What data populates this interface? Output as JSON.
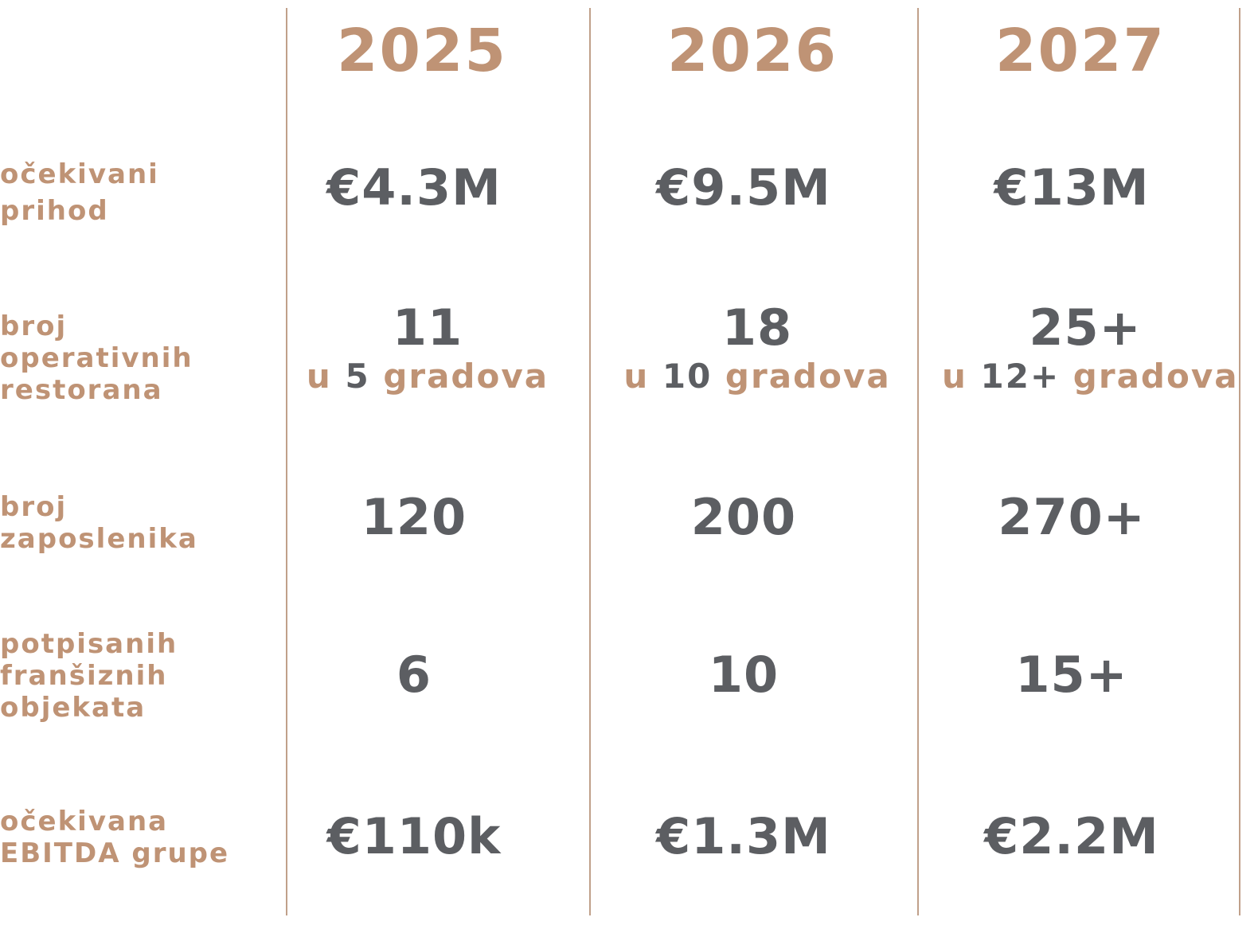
{
  "years": [
    "2025",
    "2026",
    "2027"
  ],
  "rows": [
    {
      "label_lines": [
        "očekivani",
        "prihod"
      ],
      "values": [
        "€4.3M",
        "€9.5M",
        "€13M"
      ]
    },
    {
      "label_lines": [
        "broj",
        "operativnih",
        "restorana"
      ],
      "values": [
        "11",
        "18",
        "25+"
      ],
      "sub": [
        {
          "pre": "u",
          "num": "5",
          "post": "gradova"
        },
        {
          "pre": "u",
          "num": "10",
          "post": "gradova"
        },
        {
          "pre": "u",
          "num": "12+",
          "post": "gradova"
        }
      ]
    },
    {
      "label_lines": [
        "broj",
        "zaposlenika"
      ],
      "values": [
        "120",
        "200",
        "270+"
      ]
    },
    {
      "label_lines": [
        "potpisanih",
        "franšiznih",
        "objekata"
      ],
      "values": [
        "6",
        "10",
        "15+"
      ]
    },
    {
      "label_lines": [
        "očekivana",
        "EBITDA grupe"
      ],
      "values": [
        "€110k",
        "€1.3M",
        "€2.2M"
      ]
    }
  ],
  "colors": {
    "accent": "#bf9375",
    "value": "#5c5e62",
    "divider": "#c0a08a"
  }
}
